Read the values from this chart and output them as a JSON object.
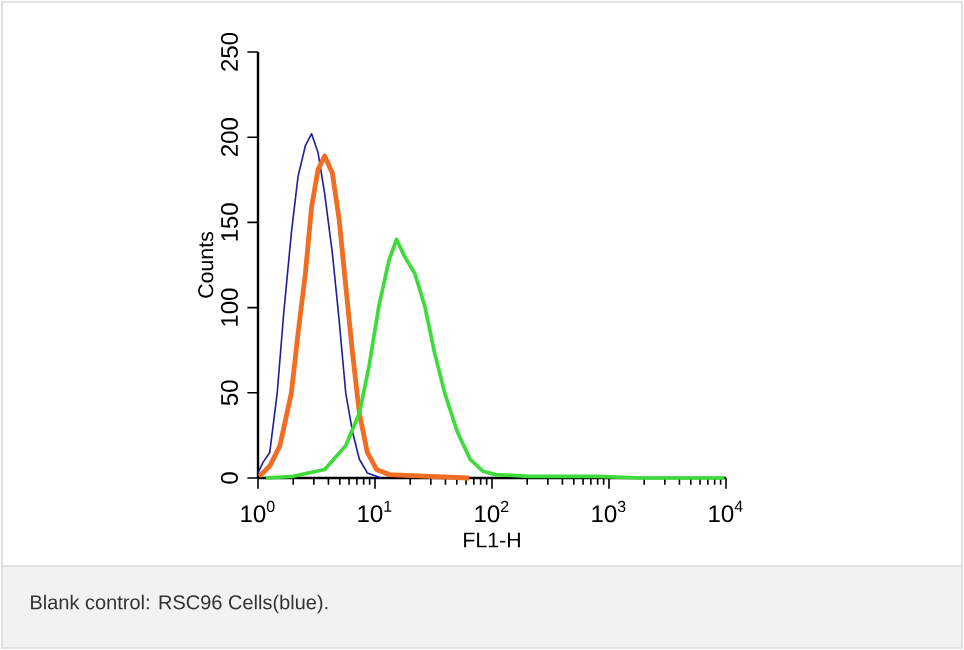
{
  "chart_data": {
    "type": "line",
    "xlabel": "FL1-H",
    "ylabel": "Counts",
    "log": "x",
    "grid": false,
    "marker": "none",
    "line_style": "solid",
    "xlim": [
      1,
      10000
    ],
    "ylim": [
      0,
      250
    ],
    "xticks": [
      {
        "value": 1,
        "label": "10$^{0}$"
      },
      {
        "value": 10,
        "label": "10$^{1}$"
      },
      {
        "value": 100,
        "label": "10$^{2}$"
      },
      {
        "value": 1000,
        "label": "10$^{3}$"
      },
      {
        "value": 10000,
        "label": "10$^{4}$"
      }
    ],
    "yticks": [
      0,
      50,
      100,
      150,
      200,
      250
    ],
    "annotations": [
      "Blank control: RSC96 Cells(blue)."
    ],
    "series": [
      {
        "color": "#1c1c9c",
        "x": [
          1.0,
          1.1,
          1.26,
          1.46,
          1.66,
          1.93,
          2.2,
          2.54,
          2.87,
          3.26,
          3.71,
          4.32,
          4.93,
          5.62,
          6.43,
          7.35,
          8.6,
          11.3
        ],
        "values": [
          3,
          9,
          15,
          50,
          97,
          144,
          177,
          195,
          202,
          191,
          167,
          132,
          93,
          50,
          27,
          11,
          3,
          0
        ]
      },
      {
        "color": "#f26c22",
        "x": [
          1.03,
          1.26,
          1.54,
          1.93,
          2.2,
          2.54,
          2.87,
          3.26,
          3.71,
          4.32,
          4.93,
          5.62,
          6.43,
          7.35,
          8.6,
          10.3,
          13.2,
          29,
          64
        ],
        "values": [
          1,
          7,
          19,
          50,
          85,
          120,
          159,
          181,
          189,
          179,
          152,
          113,
          73,
          38,
          15,
          5,
          2,
          1,
          0
        ]
      },
      {
        "color": "#3ddc3a",
        "x": [
          1.17,
          2.0,
          3.71,
          5.62,
          7.35,
          8.91,
          10.8,
          13.2,
          15.3,
          17.9,
          21.9,
          26.6,
          32.4,
          39.4,
          50.6,
          65,
          83.5,
          107,
          207,
          769,
          1930,
          9700
        ],
        "values": [
          0,
          1,
          5,
          19,
          38,
          66,
          101,
          128,
          140,
          130,
          120,
          101,
          73,
          50,
          27,
          11,
          4,
          2,
          1,
          1,
          0,
          0
        ]
      }
    ]
  }
}
